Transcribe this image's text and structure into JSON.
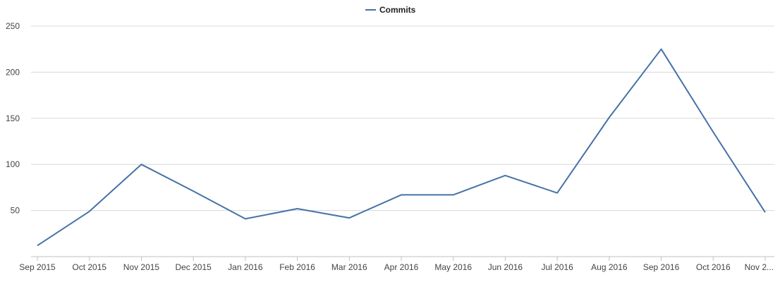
{
  "chart_data": {
    "type": "line",
    "title": "",
    "xlabel": "",
    "ylabel": "",
    "categories": [
      "Sep 2015",
      "Oct 2015",
      "Nov 2015",
      "Dec 2015",
      "Jan 2016",
      "Feb 2016",
      "Mar 2016",
      "Apr 2016",
      "May 2016",
      "Jun 2016",
      "Jul 2016",
      "Aug 2016",
      "Sep 2016",
      "Oct 2016",
      "Nov 2..."
    ],
    "series": [
      {
        "name": "Commits",
        "values": [
          12,
          49,
          100,
          71,
          41,
          52,
          42,
          67,
          67,
          88,
          69,
          151,
          225,
          135,
          48
        ]
      }
    ],
    "yticks": [
      50,
      100,
      150,
      200,
      250
    ],
    "ylim": [
      0,
      250
    ],
    "grid": true,
    "legend": "top-center",
    "colors": {
      "series": "#4572a7",
      "grid": "#d8d8d8",
      "axis": "#c0c0c0"
    }
  }
}
